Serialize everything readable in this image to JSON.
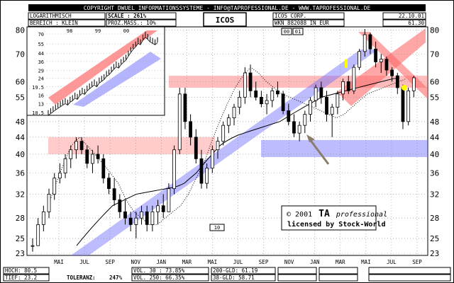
{
  "header": {
    "copyright": "COPYRIGHT  DWUEL INFORMATIONSSYSTEME  -  INFO@TAPROFESSIONAL.DE  -  WWW.TAPROFESSIONAL.DE",
    "scale_mode": "LOGARITHMISCH",
    "scale": "SCALE : 261%",
    "range": "BEREICH : KLEIN",
    "prozmass": "PROZ.MASS.: 10%",
    "symbol": "ICOS",
    "company": "ICOS CORP.",
    "wkn": "WKN 882088  IN EUR",
    "date": "22.10.01",
    "last_price": "61.30"
  },
  "footer": {
    "hoch": "HOCH: 80.5",
    "tief": "TIEF: 23.2",
    "toleranz_label": "TOLERANZ:",
    "toleranz_value": "247%",
    "vol30": "VOL. 30 :  73.85%",
    "vol250": "VOL. 250:  66.35%",
    "gld200": "200-GLD: 61.19",
    "gld38": "38-GLD:  58.71"
  },
  "watermark": {
    "line1_prefix": "© 2001",
    "line1_brand": "TA",
    "line1_suffix": "professional",
    "line2": "licensed by Stock-World"
  },
  "annotations": {
    "box_marker": "10",
    "top_marker_a": "00",
    "top_marker_b": "01"
  },
  "colors": {
    "resistance_band": "#ff6b6b",
    "support_band": "#6b6bff",
    "highlight": "#ffff00"
  },
  "chart_data": [
    {
      "type": "bar",
      "title": "ICOS",
      "subtitle": "ICOS CORP.",
      "y_scale": "log",
      "ylim": [
        23,
        80.5
      ],
      "y_ticks": [
        23,
        25,
        28,
        32,
        36,
        40,
        44,
        48,
        55,
        60,
        70,
        80
      ],
      "x_tick_labels": [
        "MAI",
        "JUL",
        "SEP",
        "NOV",
        "JAN",
        "MAR",
        "MAI",
        "JUL",
        "SEP",
        "NOV",
        "JAN",
        "MAR",
        "MAI",
        "JUL",
        "SEP"
      ],
      "support_band": [
        40,
        44
      ],
      "resistance_band": [
        58,
        62
      ],
      "ohlc": [
        [
          24,
          25,
          23.2,
          24
        ],
        [
          24,
          28,
          24,
          27
        ],
        [
          27,
          30,
          26,
          29
        ],
        [
          29,
          33,
          28,
          32
        ],
        [
          32,
          36,
          31,
          35
        ],
        [
          35,
          38,
          34,
          36
        ],
        [
          36,
          40,
          35,
          39
        ],
        [
          39,
          42,
          37,
          41
        ],
        [
          41,
          44,
          39,
          43
        ],
        [
          43,
          44,
          40,
          41
        ],
        [
          41,
          42,
          37,
          38
        ],
        [
          38,
          41,
          36,
          40
        ],
        [
          40,
          42,
          38,
          39
        ],
        [
          39,
          40,
          34,
          35
        ],
        [
          35,
          36,
          32,
          33
        ],
        [
          33,
          35,
          30,
          31
        ],
        [
          31,
          32,
          28,
          29
        ],
        [
          29,
          31,
          27,
          28
        ],
        [
          28,
          29,
          26,
          27
        ],
        [
          27,
          29,
          25,
          28
        ],
        [
          28,
          30,
          27,
          29
        ],
        [
          29,
          30,
          26,
          27
        ],
        [
          27,
          30,
          26,
          29
        ],
        [
          29,
          31,
          27,
          30
        ],
        [
          30,
          32,
          28,
          29
        ],
        [
          29,
          34,
          29,
          33
        ],
        [
          33,
          42,
          32,
          41
        ],
        [
          41,
          58,
          40,
          56
        ],
        [
          56,
          58,
          46,
          48
        ],
        [
          48,
          50,
          42,
          44
        ],
        [
          44,
          46,
          38,
          39
        ],
        [
          39,
          41,
          33,
          34
        ],
        [
          34,
          38,
          33,
          37
        ],
        [
          37,
          42,
          36,
          41
        ],
        [
          41,
          44,
          39,
          43
        ],
        [
          43,
          48,
          42,
          47
        ],
        [
          47,
          50,
          45,
          49
        ],
        [
          49,
          53,
          47,
          52
        ],
        [
          52,
          57,
          50,
          55
        ],
        [
          55,
          65,
          53,
          63
        ],
        [
          63,
          66,
          55,
          57
        ],
        [
          57,
          60,
          54,
          55
        ],
        [
          55,
          57,
          52,
          53
        ],
        [
          53,
          56,
          50,
          54
        ],
        [
          54,
          58,
          52,
          57
        ],
        [
          57,
          60,
          55,
          56
        ],
        [
          56,
          57,
          50,
          51
        ],
        [
          51,
          53,
          47,
          48
        ],
        [
          48,
          50,
          44,
          45
        ],
        [
          45,
          48,
          43,
          47
        ],
        [
          47,
          51,
          45,
          50
        ],
        [
          50,
          55,
          48,
          54
        ],
        [
          54,
          59,
          52,
          58
        ],
        [
          58,
          60,
          53,
          55
        ],
        [
          55,
          57,
          48,
          50
        ],
        [
          50,
          53,
          44,
          52
        ],
        [
          52,
          57,
          50,
          56
        ],
        [
          56,
          61,
          54,
          60
        ],
        [
          60,
          62,
          56,
          57
        ],
        [
          57,
          66,
          56,
          65
        ],
        [
          65,
          72,
          64,
          71
        ],
        [
          71,
          80.5,
          69,
          78
        ],
        [
          78,
          79,
          70,
          72
        ],
        [
          72,
          75,
          65,
          67
        ],
        [
          67,
          70,
          63,
          68
        ],
        [
          68,
          69,
          62,
          64
        ],
        [
          64,
          65,
          60,
          62
        ],
        [
          62,
          63,
          56,
          58
        ],
        [
          58,
          59,
          46,
          48
        ],
        [
          48,
          58,
          47,
          57
        ],
        [
          57,
          62,
          55,
          61.3
        ]
      ],
      "moving_average": [
        24,
        25,
        26,
        27,
        28,
        29,
        30,
        30.5,
        31,
        31.5,
        32,
        32.2,
        32.4,
        32.6,
        32.8,
        33,
        33.2,
        33.5,
        34,
        35,
        36,
        37.5,
        39,
        40.5,
        42,
        43,
        43.8,
        44.5,
        45,
        45.5,
        46,
        46.5,
        47,
        47.5,
        48,
        49,
        50,
        51,
        52,
        53,
        54,
        55,
        55.5,
        56,
        56.5,
        57,
        57.5,
        58,
        58.5,
        59,
        59.5,
        60,
        60.5,
        61,
        61.2
      ],
      "dotted_average": [
        30,
        34,
        38,
        42,
        44,
        42,
        40,
        38,
        36,
        34,
        31,
        29,
        28,
        27,
        27,
        28,
        29,
        30,
        32,
        35,
        38,
        43,
        48,
        53,
        58,
        62,
        65,
        63,
        60,
        58,
        56,
        55,
        54,
        53,
        52,
        51,
        50,
        49,
        50,
        52,
        54,
        56,
        57,
        58,
        59,
        60,
        61
      ]
    },
    {
      "type": "bar",
      "title": "inset",
      "y_scale": "log",
      "y_ticks": [
        10.5,
        13,
        16,
        19.5,
        24,
        29,
        36,
        44,
        55,
        70
      ],
      "x_tick_labels": [
        "98",
        "99",
        "00"
      ],
      "close": [
        10.5,
        11,
        11.5,
        12,
        12.5,
        13,
        13.5,
        14,
        13.5,
        14.5,
        15,
        16,
        15.5,
        17,
        18,
        17.5,
        19,
        20,
        21,
        22,
        21,
        23,
        24,
        25,
        27,
        28,
        30,
        32,
        34,
        33,
        36,
        38,
        40,
        44,
        48,
        52,
        55,
        60,
        58,
        65,
        70,
        66,
        62,
        60,
        58,
        61
      ]
    }
  ]
}
